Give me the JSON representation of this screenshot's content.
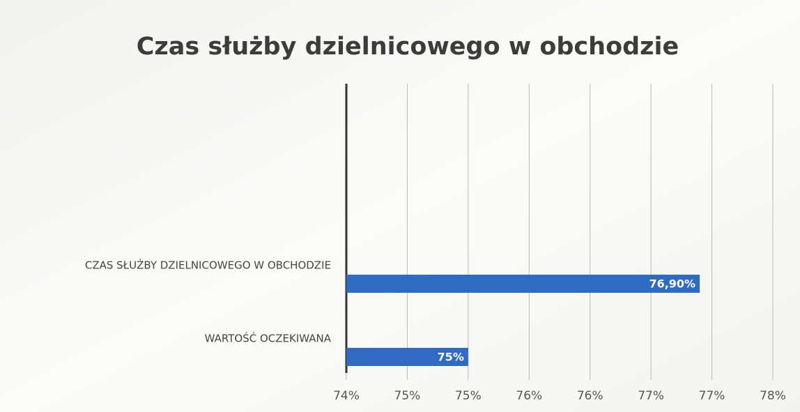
{
  "chart_data": {
    "type": "barh",
    "title": "Czas służby dzielnicowego w obchodzie",
    "categories": [
      "CZAS SŁUŻBY DZIELNICOWEGO W OBCHODZIE",
      "WARTOŚĆ OCZEKIWANA"
    ],
    "values": [
      76.9,
      75
    ],
    "value_labels": [
      "76,90%",
      "75%"
    ],
    "color": "#2f6bc3",
    "xlim": [
      74,
      77.5
    ],
    "xticks": [
      {
        "value": 74,
        "label": "74%"
      },
      {
        "value": 74.5,
        "label": "75%"
      },
      {
        "value": 75,
        "label": "75%"
      },
      {
        "value": 75.5,
        "label": "76%"
      },
      {
        "value": 76,
        "label": "76%"
      },
      {
        "value": 76.5,
        "label": "77%"
      },
      {
        "value": 77,
        "label": "77%"
      },
      {
        "value": 77.5,
        "label": "78%"
      }
    ],
    "grid": true
  }
}
